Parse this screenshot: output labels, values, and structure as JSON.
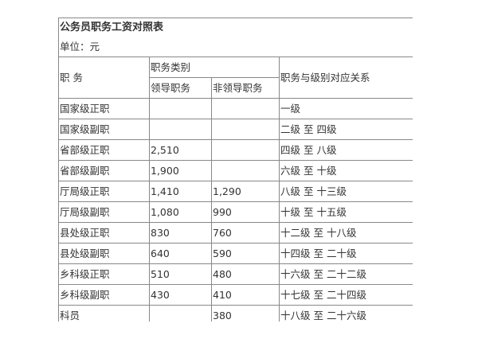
{
  "title": "公务员职务工资对照表",
  "unit": "单位：元",
  "headers": {
    "position": "职 务",
    "category": "职务类别",
    "leader": "领导职务",
    "non_leader": "非领导职务",
    "grade_relation": "职务与级别对应关系"
  },
  "rows": [
    {
      "position": "国家级正职",
      "leader": "",
      "non_leader": "",
      "grade": "一级"
    },
    {
      "position": "国家级副职",
      "leader": "",
      "non_leader": "",
      "grade": "二级 至 四级"
    },
    {
      "position": "省部级正职",
      "leader": "2,510",
      "non_leader": "",
      "grade": "四级 至 八级"
    },
    {
      "position": "省部级副职",
      "leader": "1,900",
      "non_leader": "",
      "grade": "六级 至 十级"
    },
    {
      "position": "厅局级正职",
      "leader": "1,410",
      "non_leader": "1,290",
      "grade": "八级 至 十三级"
    },
    {
      "position": "厅局级副职",
      "leader": "1,080",
      "non_leader": "990",
      "grade": "十级 至 十五级"
    },
    {
      "position": "县处级正职",
      "leader": "830",
      "non_leader": "760",
      "grade": "十二级 至 十八级"
    },
    {
      "position": "县处级副职",
      "leader": "640",
      "non_leader": "590",
      "grade": "十四级 至 二十级"
    },
    {
      "position": "乡科级正职",
      "leader": "510",
      "non_leader": "480",
      "grade": "十六级 至 二十二级"
    },
    {
      "position": "乡科级副职",
      "leader": "430",
      "non_leader": "410",
      "grade": "十七级 至 二十四级"
    },
    {
      "position": "科员",
      "leader": "",
      "non_leader": "380",
      "grade": "十八级 至 二十六级"
    }
  ]
}
